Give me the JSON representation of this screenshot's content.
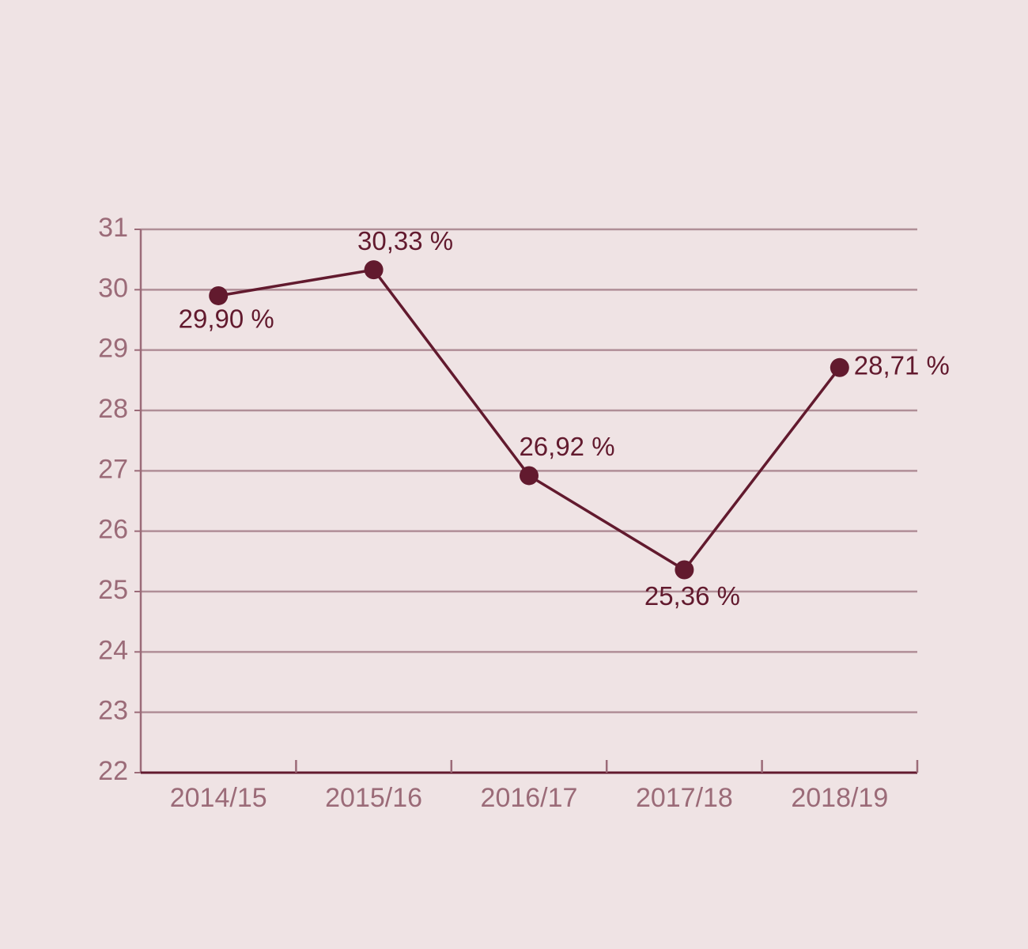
{
  "chart_data": {
    "type": "line",
    "categories": [
      "2014/15",
      "2015/16",
      "2016/17",
      "2017/18",
      "2018/19"
    ],
    "values": [
      29.9,
      30.33,
      26.92,
      25.36,
      28.71
    ],
    "value_labels": [
      "29,90 %",
      "30,33 %",
      "26,92 %",
      "25,36 %",
      "28,71 %"
    ],
    "color": "#621a2e",
    "ylim": [
      22,
      31
    ],
    "yticks": [
      22,
      23,
      24,
      25,
      26,
      27,
      28,
      29,
      30,
      31
    ],
    "grid": true
  }
}
